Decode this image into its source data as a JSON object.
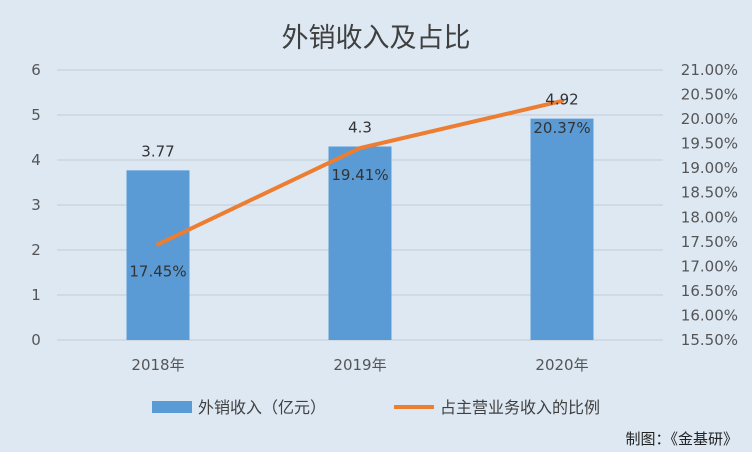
{
  "chart_data": {
    "type": "bar",
    "title": "外销收入及占比",
    "categories": [
      "2018年",
      "2019年",
      "2020年"
    ],
    "series": [
      {
        "name": "外销收入（亿元）",
        "type": "bar",
        "axis": "left",
        "values": [
          3.77,
          4.3,
          4.92
        ],
        "labels": [
          "3.77",
          "4.3",
          "4.92"
        ],
        "color": "#5b9bd5"
      },
      {
        "name": "占主营业务收入的比例",
        "type": "line",
        "axis": "right",
        "values": [
          17.45,
          19.41,
          20.37
        ],
        "labels": [
          "17.45%",
          "19.41%",
          "20.37%"
        ],
        "color": "#ed7d31"
      }
    ],
    "y_left": {
      "min": 0,
      "max": 6,
      "step": 1,
      "ticks": [
        "0",
        "1",
        "2",
        "3",
        "4",
        "5",
        "6"
      ]
    },
    "y_right": {
      "min": 15.5,
      "max": 21.0,
      "step": 0.5,
      "ticks": [
        "15.50%",
        "16.00%",
        "16.50%",
        "17.00%",
        "17.50%",
        "18.00%",
        "18.50%",
        "19.00%",
        "19.50%",
        "20.00%",
        "20.50%",
        "21.00%"
      ]
    },
    "grid": true,
    "legend": "bottom"
  },
  "credit": "制图：《金基研》"
}
